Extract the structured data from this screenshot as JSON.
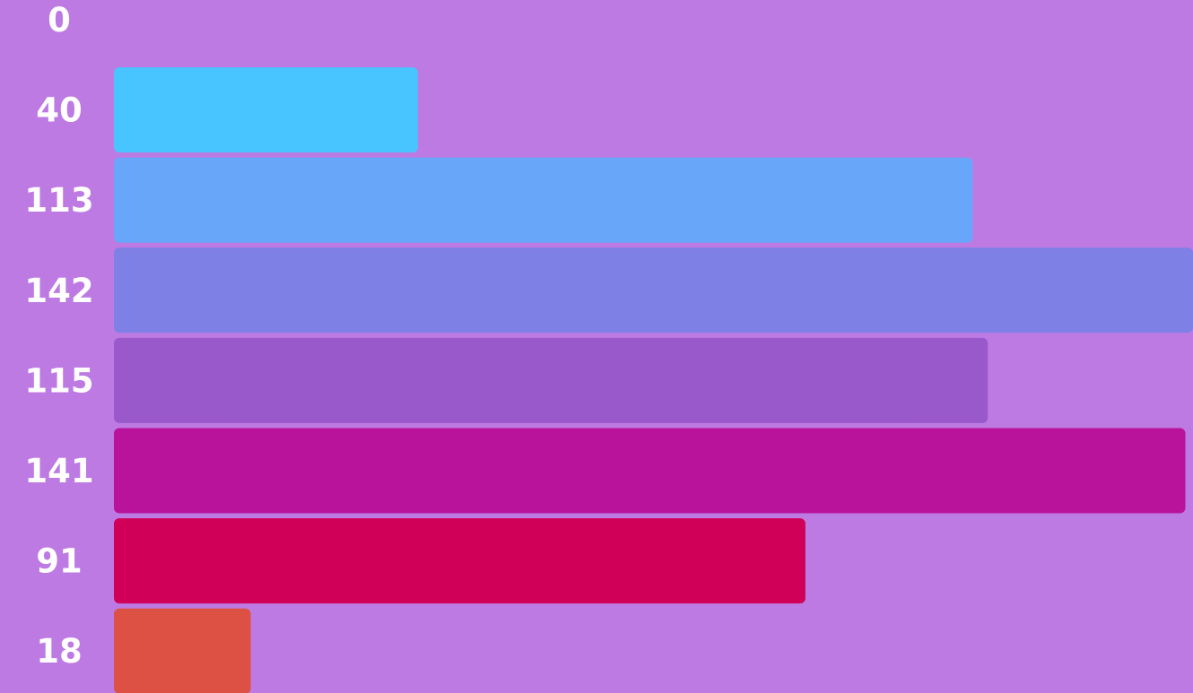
{
  "chart_data": {
    "type": "bar",
    "orientation": "horizontal",
    "background_color": "#be7ae3",
    "label_color": "#ffffff",
    "categories": [
      "0",
      "40",
      "113",
      "142",
      "115",
      "141",
      "91",
      "18"
    ],
    "values": [
      0,
      40,
      113,
      142,
      115,
      141,
      91,
      18
    ],
    "labels": [
      "0",
      "40",
      "113",
      "142",
      "115",
      "141",
      "91",
      "18"
    ],
    "bar_colors": [
      "#be7ae3",
      "#48c5fe",
      "#68a6fa",
      "#7f80e6",
      "#9a59ca",
      "#b9139c",
      "#d00059",
      "#dc5143"
    ],
    "xlim": [
      0,
      142
    ],
    "grid": false,
    "legend": "none",
    "title": "",
    "xlabel": "",
    "ylabel": ""
  }
}
